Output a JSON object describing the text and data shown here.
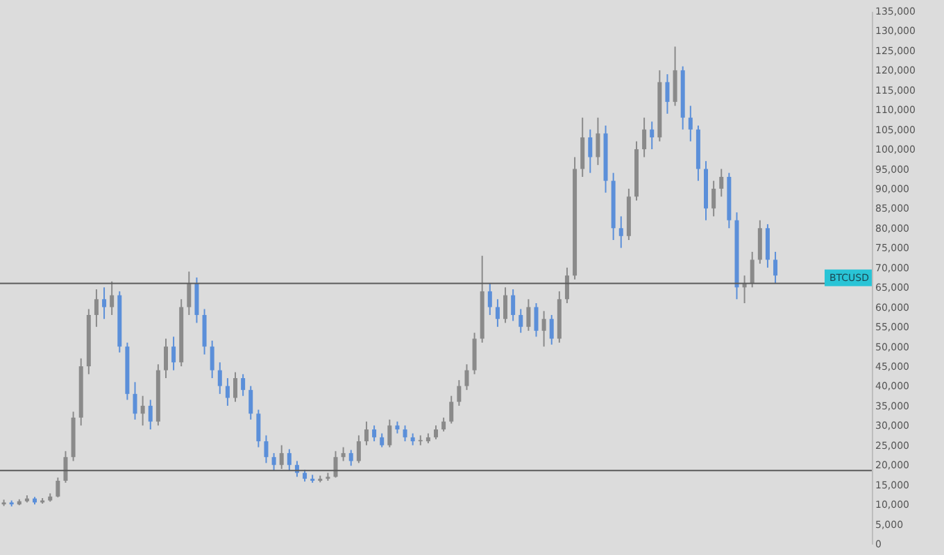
{
  "chart_data": {
    "type": "candlestick",
    "categories": [
      null,
      null,
      null,
      null,
      null,
      null,
      null,
      null,
      null,
      null,
      null,
      null,
      null,
      null,
      null,
      null,
      null,
      null,
      null,
      null,
      null,
      null,
      null,
      null,
      null,
      null,
      null,
      null,
      null,
      null,
      null,
      null,
      null,
      null,
      null,
      null,
      null,
      null,
      null,
      null,
      null,
      null,
      null,
      null,
      null,
      null,
      null,
      null,
      null,
      null,
      null,
      null,
      null,
      null,
      null,
      null,
      null,
      null,
      null,
      null,
      null,
      null,
      null,
      null,
      null,
      null,
      null,
      null,
      null,
      null,
      null,
      null,
      null,
      null,
      null,
      null,
      null,
      null,
      null,
      null,
      null,
      null,
      null,
      null,
      null,
      null,
      null,
      null,
      null,
      null,
      null,
      null,
      null,
      null,
      null,
      null,
      null,
      null,
      null,
      null,
      null,
      null,
      null,
      null,
      null,
      null,
      null,
      null,
      null,
      null,
      null,
      null,
      null
    ],
    "ohlc": [
      [
        10000,
        11200,
        9600,
        10500
      ],
      [
        10500,
        11000,
        9500,
        10000
      ],
      [
        10000,
        11300,
        9800,
        10800
      ],
      [
        10800,
        12300,
        10500,
        11500
      ],
      [
        11500,
        11900,
        10000,
        10500
      ],
      [
        10500,
        11600,
        10200,
        11000
      ],
      [
        11000,
        12800,
        10700,
        12000
      ],
      [
        12000,
        16800,
        11800,
        16000
      ],
      [
        16000,
        23500,
        15500,
        22000
      ],
      [
        22000,
        33500,
        21000,
        32000
      ],
      [
        32000,
        47000,
        30000,
        45000
      ],
      [
        45000,
        59500,
        43000,
        58000
      ],
      [
        58000,
        64500,
        55000,
        62000
      ],
      [
        62000,
        65000,
        57000,
        60000
      ],
      [
        60000,
        66500,
        58000,
        63000
      ],
      [
        63000,
        64000,
        48500,
        50000
      ],
      [
        50000,
        51000,
        36500,
        38000
      ],
      [
        38000,
        41000,
        31500,
        33000
      ],
      [
        33000,
        37500,
        30000,
        35000
      ],
      [
        35000,
        36500,
        29000,
        31000
      ],
      [
        31000,
        45500,
        30000,
        44000
      ],
      [
        44000,
        52000,
        42000,
        50000
      ],
      [
        50000,
        52500,
        44000,
        46000
      ],
      [
        46000,
        62000,
        45000,
        60000
      ],
      [
        60000,
        69000,
        58000,
        66000
      ],
      [
        66000,
        67500,
        56000,
        58000
      ],
      [
        58000,
        59500,
        48000,
        50000
      ],
      [
        50000,
        51500,
        42000,
        44000
      ],
      [
        44000,
        46000,
        38000,
        40000
      ],
      [
        40000,
        42000,
        35000,
        37000
      ],
      [
        37000,
        43500,
        36000,
        42000
      ],
      [
        42000,
        43000,
        37500,
        39000
      ],
      [
        39000,
        40000,
        31500,
        33000
      ],
      [
        33000,
        34000,
        24500,
        26000
      ],
      [
        26000,
        27500,
        20500,
        22000
      ],
      [
        22000,
        23000,
        18500,
        20000
      ],
      [
        20000,
        25000,
        19000,
        23000
      ],
      [
        23000,
        24000,
        18500,
        20000
      ],
      [
        20000,
        21000,
        17000,
        18000
      ],
      [
        18000,
        18800,
        15800,
        16500
      ],
      [
        16500,
        17500,
        15500,
        16000
      ],
      [
        16000,
        17300,
        15600,
        16500
      ],
      [
        16500,
        18000,
        16000,
        17000
      ],
      [
        17000,
        23500,
        16800,
        22000
      ],
      [
        22000,
        24500,
        21000,
        23000
      ],
      [
        23000,
        23800,
        19800,
        21000
      ],
      [
        21000,
        27500,
        20500,
        26000
      ],
      [
        26000,
        31000,
        25000,
        29000
      ],
      [
        29000,
        30000,
        26000,
        27000
      ],
      [
        27000,
        28000,
        24500,
        25000
      ],
      [
        25000,
        31500,
        24500,
        30000
      ],
      [
        30000,
        31000,
        28000,
        29000
      ],
      [
        29000,
        30000,
        26000,
        27000
      ],
      [
        27000,
        28000,
        25000,
        26000
      ],
      [
        26000,
        27500,
        25000,
        26300
      ],
      [
        26000,
        28000,
        25500,
        27000
      ],
      [
        27000,
        30000,
        26500,
        29000
      ],
      [
        29000,
        32000,
        28500,
        31000
      ],
      [
        31000,
        37500,
        30500,
        36000
      ],
      [
        36000,
        41500,
        35000,
        40000
      ],
      [
        40000,
        45500,
        39000,
        44000
      ],
      [
        44000,
        53500,
        43000,
        52000
      ],
      [
        52000,
        73000,
        51000,
        64000
      ],
      [
        64000,
        66000,
        58000,
        60000
      ],
      [
        60000,
        62000,
        55000,
        57000
      ],
      [
        57000,
        65000,
        56000,
        63000
      ],
      [
        63000,
        64500,
        56500,
        58000
      ],
      [
        58000,
        59500,
        53500,
        55000
      ],
      [
        55000,
        62000,
        54000,
        60000
      ],
      [
        60000,
        61000,
        52500,
        54000
      ],
      [
        54000,
        59000,
        50000,
        57000
      ],
      [
        57000,
        58000,
        50500,
        52000
      ],
      [
        52000,
        64000,
        51000,
        62000
      ],
      [
        62000,
        70000,
        61000,
        68000
      ],
      [
        68000,
        98000,
        67000,
        95000
      ],
      [
        95000,
        108000,
        93000,
        103000
      ],
      [
        103000,
        105000,
        94000,
        98000
      ],
      [
        98000,
        108000,
        96000,
        104000
      ],
      [
        104000,
        106000,
        89000,
        92000
      ],
      [
        92000,
        94000,
        77000,
        80000
      ],
      [
        80000,
        83000,
        75000,
        78000
      ],
      [
        78000,
        90000,
        77000,
        88000
      ],
      [
        88000,
        102000,
        87000,
        100000
      ],
      [
        100000,
        108000,
        98000,
        105000
      ],
      [
        105000,
        107000,
        100000,
        103000
      ],
      [
        103000,
        120000,
        102000,
        117000
      ],
      [
        117000,
        119000,
        109000,
        112000
      ],
      [
        112000,
        126000,
        111000,
        120000
      ],
      [
        120000,
        121000,
        105000,
        108000
      ],
      [
        108000,
        111000,
        102000,
        105000
      ],
      [
        105000,
        106000,
        92000,
        95000
      ],
      [
        95000,
        97000,
        82000,
        85000
      ],
      [
        85000,
        92000,
        83000,
        90000
      ],
      [
        90000,
        95000,
        88000,
        93000
      ],
      [
        93000,
        94000,
        80000,
        82000
      ],
      [
        82000,
        84000,
        62000,
        65000
      ],
      [
        65000,
        68000,
        61000,
        66000
      ],
      [
        66000,
        74000,
        65000,
        72000
      ],
      [
        72000,
        82000,
        71000,
        80000
      ],
      [
        80000,
        81000,
        70000,
        72000
      ],
      [
        72000,
        74000,
        66000,
        68000
      ],
      null,
      null,
      null,
      null,
      null,
      null,
      null,
      null,
      null,
      null,
      null,
      null
    ],
    "colors": [
      "#8a8a8a",
      "#5b8fd9",
      "#8a8a8a",
      "#8a8a8a",
      "#5b8fd9",
      "#8a8a8a",
      "#8a8a8a",
      "#8a8a8a",
      "#8a8a8a",
      "#8a8a8a",
      "#8a8a8a",
      "#8a8a8a",
      "#8a8a8a",
      "#5b8fd9",
      "#8a8a8a",
      "#5b8fd9",
      "#5b8fd9",
      "#5b8fd9",
      "#8a8a8a",
      "#5b8fd9",
      "#8a8a8a",
      "#8a8a8a",
      "#5b8fd9",
      "#8a8a8a",
      "#8a8a8a",
      "#5b8fd9",
      "#5b8fd9",
      "#5b8fd9",
      "#5b8fd9",
      "#5b8fd9",
      "#8a8a8a",
      "#5b8fd9",
      "#5b8fd9",
      "#5b8fd9",
      "#5b8fd9",
      "#5b8fd9",
      "#8a8a8a",
      "#5b8fd9",
      "#5b8fd9",
      "#5b8fd9",
      "#5b8fd9",
      "#8a8a8a",
      "#8a8a8a",
      "#8a8a8a",
      "#8a8a8a",
      "#5b8fd9",
      "#8a8a8a",
      "#8a8a8a",
      "#5b8fd9",
      "#5b8fd9",
      "#8a8a8a",
      "#5b8fd9",
      "#5b8fd9",
      "#5b8fd9",
      "#8a8a8a",
      "#8a8a8a",
      "#8a8a8a",
      "#8a8a8a",
      "#8a8a8a",
      "#8a8a8a",
      "#8a8a8a",
      "#8a8a8a",
      "#8a8a8a",
      "#5b8fd9",
      "#5b8fd9",
      "#8a8a8a",
      "#5b8fd9",
      "#5b8fd9",
      "#8a8a8a",
      "#5b8fd9",
      "#8a8a8a",
      "#5b8fd9",
      "#8a8a8a",
      "#8a8a8a",
      "#8a8a8a",
      "#8a8a8a",
      "#5b8fd9",
      "#8a8a8a",
      "#5b8fd9",
      "#5b8fd9",
      "#5b8fd9",
      "#8a8a8a",
      "#8a8a8a",
      "#8a8a8a",
      "#5b8fd9",
      "#8a8a8a",
      "#5b8fd9",
      "#8a8a8a",
      "#5b8fd9",
      "#5b8fd9",
      "#5b8fd9",
      "#5b8fd9",
      "#8a8a8a",
      "#8a8a8a",
      "#5b8fd9",
      "#5b8fd9",
      "#8a8a8a",
      "#8a8a8a",
      "#8a8a8a",
      "#5b8fd9",
      "#5b8fd9",
      null,
      null,
      null,
      null,
      null,
      null,
      null,
      null,
      null,
      null,
      null,
      null
    ],
    "ylim": [
      0,
      135000
    ],
    "yticks": [
      0,
      {
        "value": 5000,
        "label": "5,000"
      },
      {
        "value": 10000,
        "label": "10,000"
      },
      {
        "value": 15000,
        "label": "15,000"
      },
      {
        "value": 20000,
        "label": "20,000"
      },
      {
        "value": 25000,
        "label": "25,000"
      },
      {
        "value": 30000,
        "label": "30,000"
      },
      {
        "value": 35000,
        "label": "35,000"
      },
      {
        "value": 40000,
        "label": "40,000"
      },
      {
        "value": 45000,
        "label": "45,000"
      },
      {
        "value": 50000,
        "label": "50,000"
      },
      {
        "value": 55000,
        "label": "55,000"
      },
      {
        "value": 60000,
        "label": "60,000"
      },
      {
        "value": 65000,
        "label": "65,000"
      },
      {
        "value": 70000,
        "label": "70,000"
      },
      {
        "value": 75000,
        "label": "75,000"
      },
      {
        "value": 80000,
        "label": "80,000"
      },
      {
        "value": 85000,
        "label": "85,000"
      },
      {
        "value": 90000,
        "label": "90,000"
      },
      {
        "value": 95000,
        "label": "95,000"
      },
      {
        "value": 100000,
        "label": "100,000"
      },
      {
        "value": 105000,
        "label": "105,000"
      },
      {
        "value": 110000,
        "label": "110,000"
      },
      {
        "value": 115000,
        "label": "115,000"
      },
      {
        "value": 120000,
        "label": "120,000"
      },
      {
        "value": 125000,
        "label": "125,000"
      },
      {
        "value": 130000,
        "label": "130,000"
      },
      {
        "value": 135000,
        "label": "135,000"
      }
    ],
    "ref_lines": [
      {
        "axis": "y",
        "value": 66000,
        "color": "#5a5a5a"
      },
      {
        "axis": "y",
        "value": 18600,
        "color": "#5a5a5a"
      }
    ],
    "annotations": [
      {
        "text": "BTCUSD",
        "y": 67400
      }
    ],
    "tick_labels": "y"
  }
}
